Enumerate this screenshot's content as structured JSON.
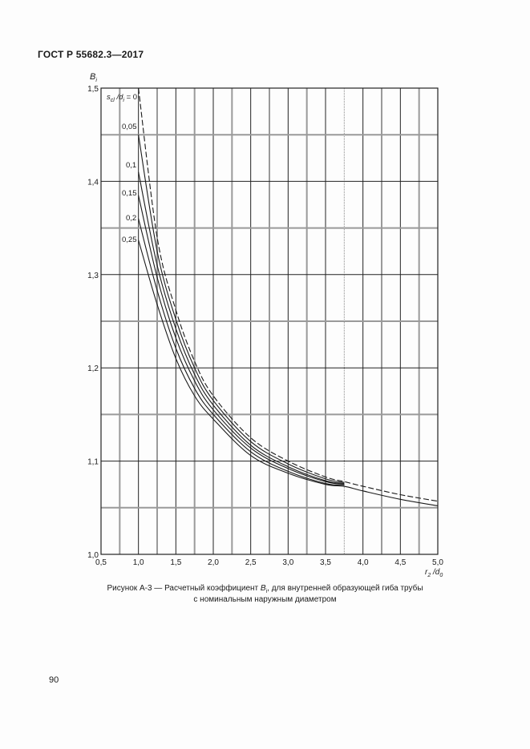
{
  "document": {
    "header": "ГОСТ Р 55682.3—2017",
    "page_number": "90",
    "caption_line1_pre": "Рисунок А-3 — Расчетный коэффициент ",
    "caption_symbol": "B",
    "caption_symbol_sub": "i",
    "caption_line1_post": ", для внутренней образующей гиба трубы",
    "caption_line2": "с номинальным наружным диаметром"
  },
  "chart_data": {
    "type": "line",
    "title": "Рисунок А-3 — Расчетный коэффициент Bi, для внутренней образующей гиба трубы с номинальным наружным диаметром",
    "xlabel": "r2/d0",
    "ylabel": "Bi",
    "xlim": [
      0.5,
      5.0
    ],
    "ylim": [
      1.0,
      1.5
    ],
    "xticks": [
      "0,5",
      "1,0",
      "1,5",
      "2,0",
      "2,5",
      "3,0",
      "3,5",
      "4,0",
      "4,5",
      "5,0"
    ],
    "yticks": [
      "1,0",
      "1,1",
      "1,2",
      "1,3",
      "1,4",
      "1,5"
    ],
    "grid": true,
    "grid_x_step": 0.25,
    "grid_y_step": 0.05,
    "legend_title": "scl/di =",
    "x": [
      1.0,
      1.25,
      1.5,
      1.75,
      2.0,
      2.5,
      3.0,
      3.5,
      3.75,
      4.0,
      4.5,
      5.0
    ],
    "series": [
      {
        "name": "0",
        "style": "dashed",
        "label": "sсl/di = 0",
        "values": [
          1.5,
          1.34,
          1.262,
          1.207,
          1.17,
          1.125,
          1.1,
          1.083,
          1.078,
          1.073,
          1.064,
          1.057
        ]
      },
      {
        "name": "0,05",
        "style": "solid",
        "label": "0,05",
        "values": [
          1.45,
          1.325,
          1.252,
          1.2,
          1.165,
          1.121,
          1.097,
          1.081,
          1.077,
          null,
          null,
          null
        ]
      },
      {
        "name": "0,1",
        "style": "solid",
        "label": "0,1",
        "values": [
          1.41,
          1.31,
          1.242,
          1.193,
          1.16,
          1.117,
          1.094,
          1.079,
          1.076,
          null,
          null,
          null
        ]
      },
      {
        "name": "0,15",
        "style": "solid",
        "label": "0,15",
        "values": [
          1.385,
          1.297,
          1.232,
          1.186,
          1.155,
          1.114,
          1.092,
          1.078,
          1.075,
          null,
          null,
          null
        ]
      },
      {
        "name": "0,2",
        "style": "solid",
        "label": "0,2",
        "values": [
          1.36,
          1.283,
          1.221,
          1.178,
          1.15,
          1.11,
          1.089,
          1.076,
          1.074,
          null,
          null,
          null
        ]
      },
      {
        "name": "0,25",
        "style": "solid",
        "label": "0,25",
        "values": [
          1.337,
          1.268,
          1.21,
          1.17,
          1.145,
          1.106,
          1.087,
          1.075,
          1.073,
          1.068,
          1.059,
          1.052
        ]
      }
    ],
    "annotations": [
      "sсl/di = 0",
      "0,05",
      "0,1",
      "0,15",
      "0,2",
      "0,25"
    ]
  }
}
